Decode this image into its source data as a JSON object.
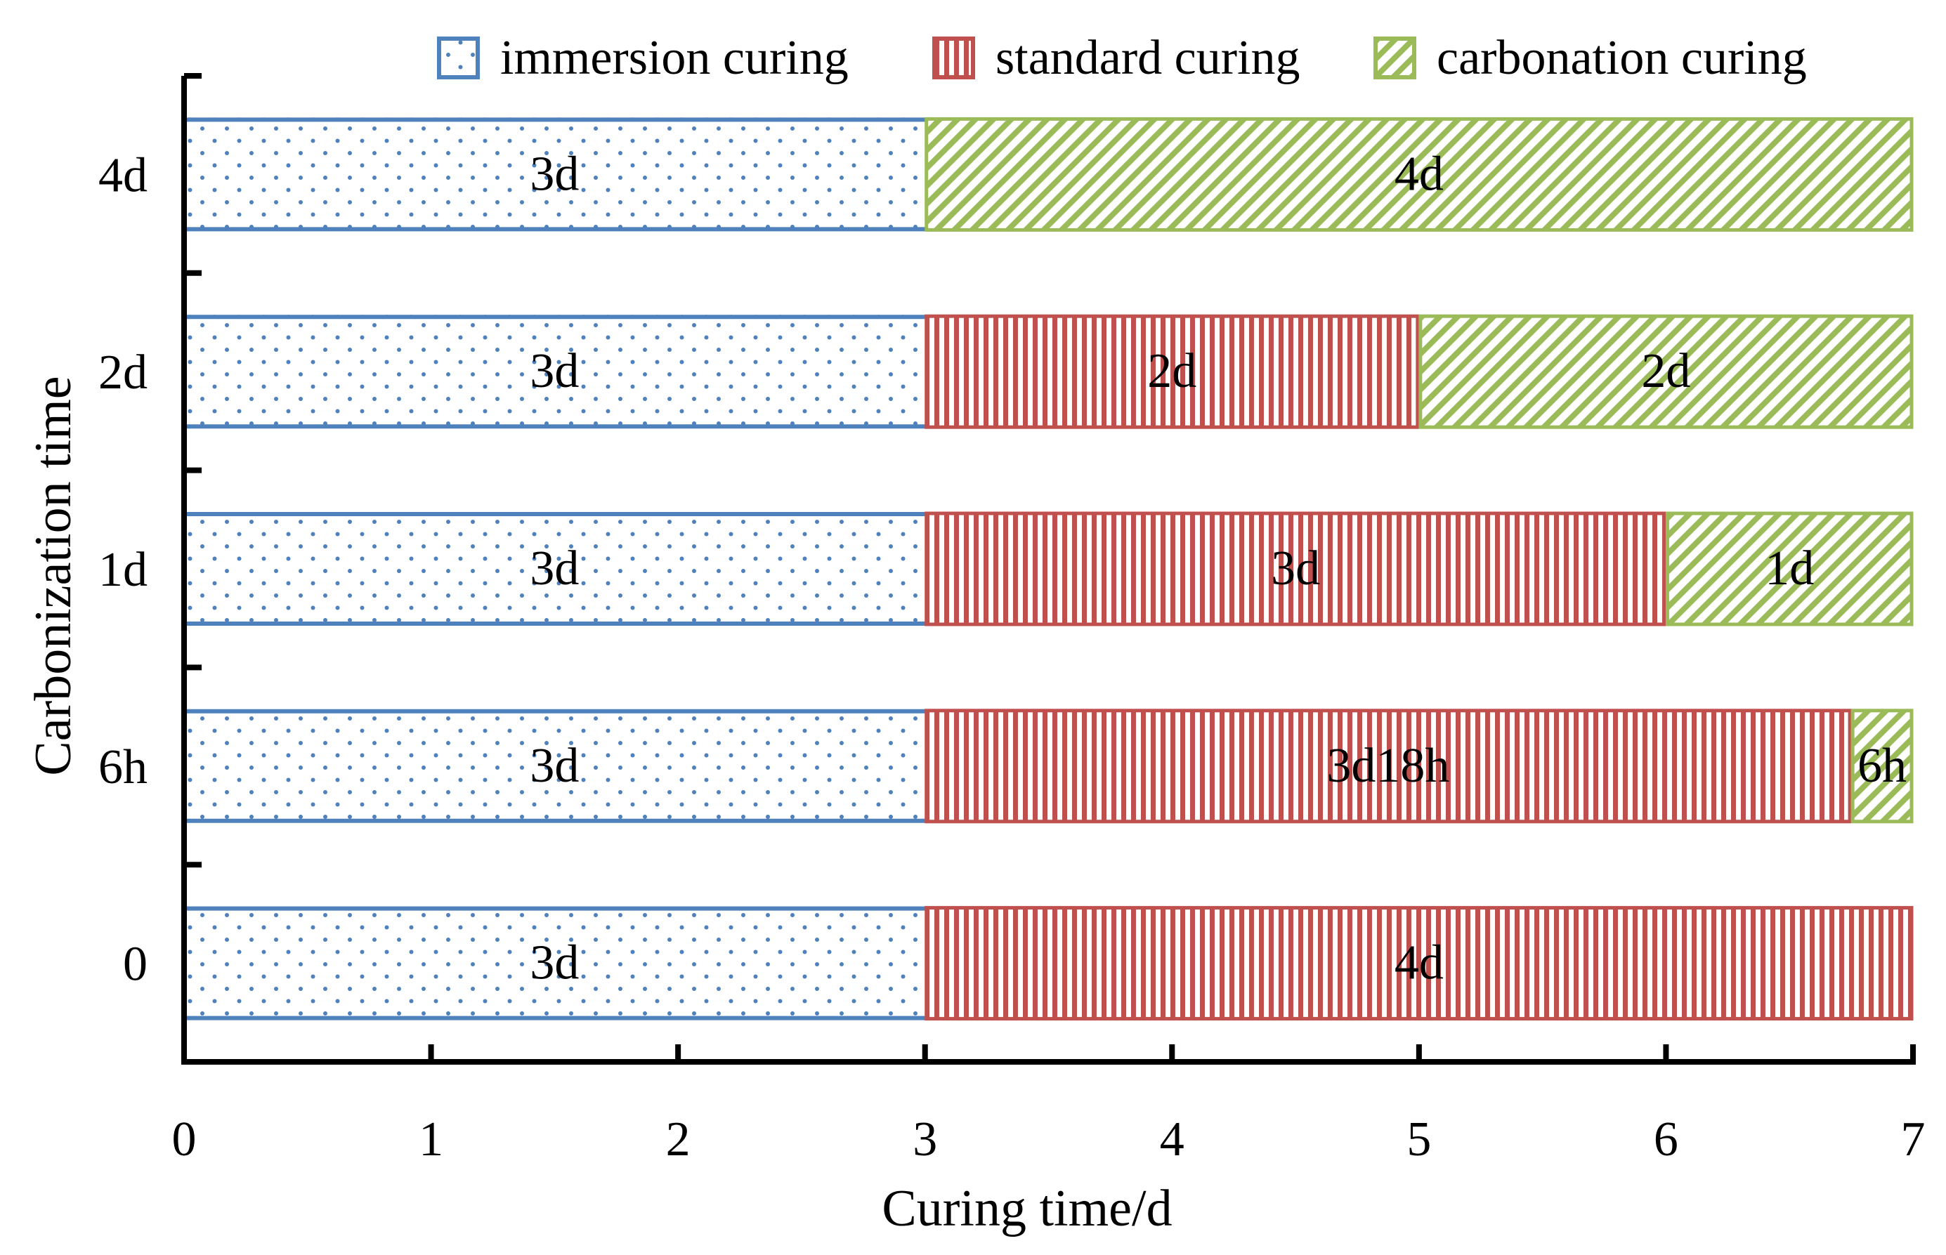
{
  "chart_data": {
    "type": "bar",
    "orientation": "horizontal",
    "stacked": true,
    "title": "",
    "xlabel": "Curing time/d",
    "ylabel": "Carbonization time",
    "xlim": [
      0,
      7
    ],
    "x_ticks": [
      "0",
      "1",
      "2",
      "3",
      "4",
      "5",
      "6",
      "7"
    ],
    "categories": [
      "0",
      "6h",
      "1d",
      "2d",
      "4d"
    ],
    "legend_position": "top",
    "series": [
      {
        "name": "immersion curing",
        "color": "#4F81BD",
        "pattern": "dots",
        "values": [
          3,
          3,
          3,
          3,
          3
        ],
        "labels": [
          "3d",
          "3d",
          "3d",
          "3d",
          "3d"
        ]
      },
      {
        "name": "standard curing",
        "color": "#C0504D",
        "pattern": "vertical-stripes",
        "values": [
          4,
          3.75,
          3,
          2,
          0
        ],
        "labels": [
          "4d",
          "3d18h",
          "3d",
          "2d",
          ""
        ]
      },
      {
        "name": "carbonation curing",
        "color": "#9BBB59",
        "pattern": "diagonal-stripes",
        "values": [
          0,
          0.25,
          1,
          2,
          4
        ],
        "labels": [
          "",
          "6h",
          "1d",
          "2d",
          "4d"
        ]
      }
    ]
  }
}
